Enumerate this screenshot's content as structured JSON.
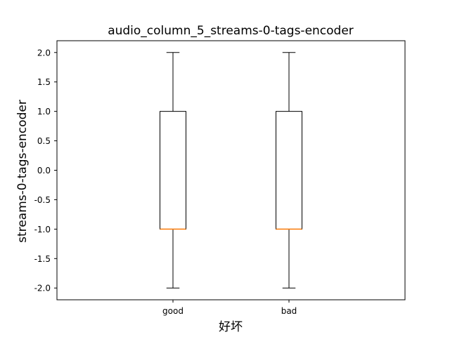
{
  "chart_data": {
    "type": "box",
    "title": "audio_column_5_streams-0-tags-encoder",
    "xlabel": "好坏",
    "ylabel": "streams-0-tags-encoder",
    "categories": [
      "good",
      "bad"
    ],
    "boxes": [
      {
        "category": "good",
        "whisker_low": -2.0,
        "q1": -1.0,
        "median": -1.0,
        "q3": 1.0,
        "whisker_high": 2.0
      },
      {
        "category": "bad",
        "whisker_low": -2.0,
        "q1": -1.0,
        "median": -1.0,
        "q3": 1.0,
        "whisker_high": 2.0
      }
    ],
    "ylim": [
      -2.2,
      2.2
    ],
    "yticks": [
      -2.0,
      -1.5,
      -1.0,
      -0.5,
      0.0,
      0.5,
      1.0,
      1.5,
      2.0
    ],
    "ytick_labels": [
      "-2.0",
      "-1.5",
      "-1.0",
      "-0.5",
      "0.0",
      "0.5",
      "1.0",
      "1.5",
      "2.0"
    ],
    "grid": false,
    "colors": {
      "box_edge": "#000000",
      "median": "#ff7f0e",
      "whisker": "#000000",
      "background": "#ffffff"
    }
  }
}
